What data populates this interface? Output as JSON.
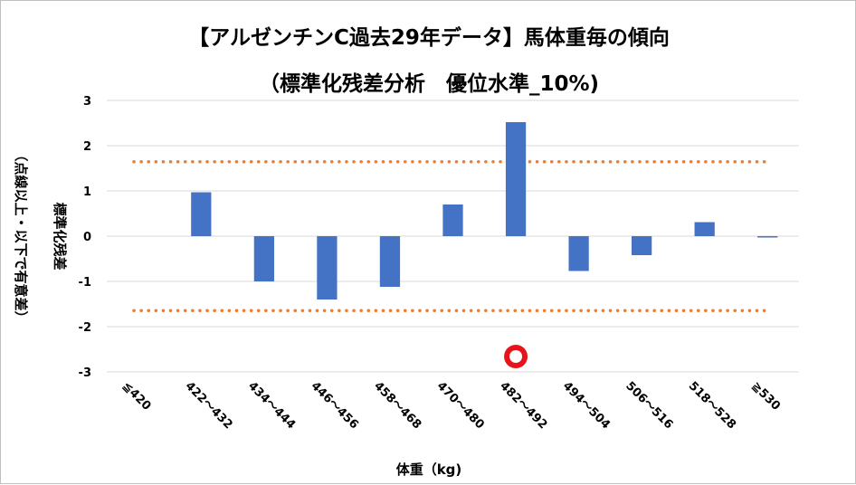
{
  "chart_data": {
    "type": "bar",
    "title": "【アルゼンチンC過去29年データ】馬体重毎の傾向",
    "subtitle": "（標準化残差分析　優位水準_10%)",
    "xlabel": "体重（kg)",
    "ylabel": "標準化残差",
    "ylabel_note": "（点線以上・以下で有意差）",
    "categories": [
      "≦420",
      "422～432",
      "434～444",
      "446～456",
      "458～468",
      "470～480",
      "482～492",
      "494～504",
      "506～516",
      "518～528",
      "≧530"
    ],
    "series": [
      {
        "values": [
          0,
          0.97,
          -1.0,
          -1.4,
          -1.12,
          0.7,
          2.52,
          -0.77,
          -0.42,
          0.31,
          -0.03
        ]
      }
    ],
    "ylim": [
      -3,
      3
    ],
    "yticks": [
      3,
      2,
      1,
      0,
      -1,
      -2,
      -3
    ],
    "thresholds": [
      1.645,
      -1.645
    ],
    "highlight_category": "482～492",
    "grid": true,
    "bar_color": "#4472C4",
    "threshold_color": "#ED7D31",
    "marker_color": "#E8141C"
  }
}
